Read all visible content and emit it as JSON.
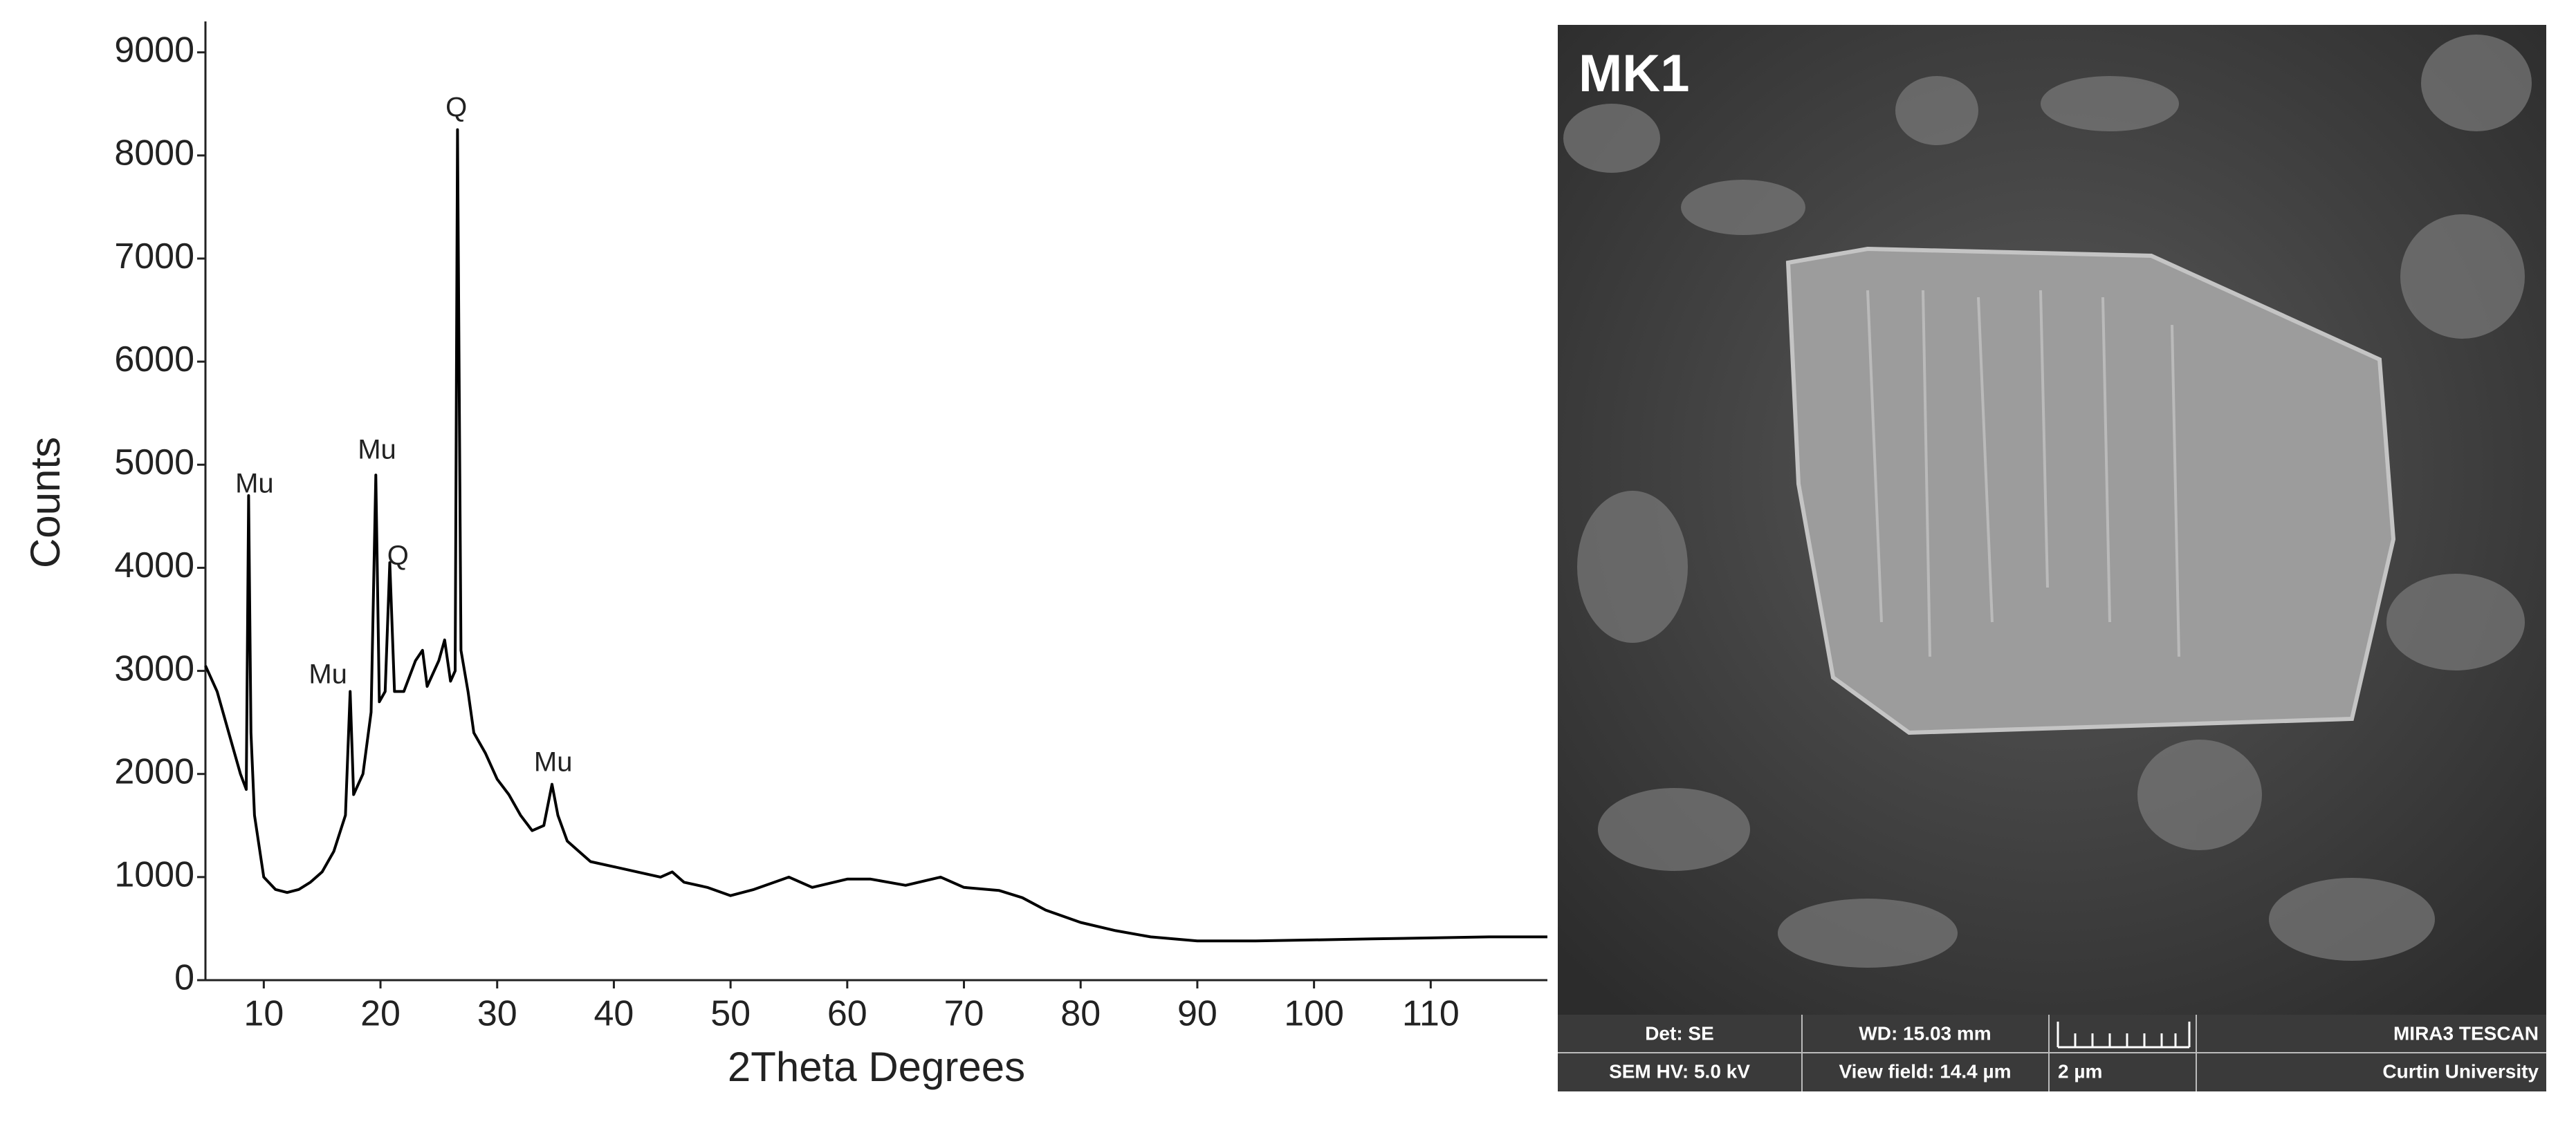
{
  "chart_data": {
    "type": "line",
    "x_label": "2Theta Degrees",
    "y_label": "Counts",
    "xlim": [
      5,
      120
    ],
    "xticks": [
      10,
      20,
      30,
      40,
      50,
      60,
      70,
      80,
      90,
      100,
      110
    ],
    "ylim": [
      0,
      9300
    ],
    "yticks": [
      0,
      1000,
      2000,
      3000,
      4000,
      5000,
      6000,
      7000,
      8000,
      9000
    ],
    "grid": false,
    "color": "#000000",
    "x": [
      5,
      6,
      7,
      8,
      8.5,
      8.7,
      8.9,
      9.2,
      10,
      11,
      12,
      13,
      14,
      15,
      16,
      17,
      17.4,
      17.7,
      18.5,
      19.2,
      19.6,
      19.9,
      20.4,
      20.8,
      21.2,
      22,
      23,
      23.6,
      24,
      25,
      25.5,
      26,
      26.4,
      26.6,
      26.9,
      27.5,
      28,
      29,
      30,
      31,
      32,
      33,
      34,
      34.7,
      35.2,
      36,
      37,
      38,
      40,
      42,
      44,
      45,
      46,
      48,
      50,
      52,
      55,
      57,
      60,
      62,
      65,
      68,
      70,
      73,
      75,
      77,
      80,
      83,
      86,
      90,
      95,
      100,
      105,
      110,
      115,
      120
    ],
    "values": [
      3050,
      2800,
      2400,
      2000,
      1850,
      4700,
      2400,
      1600,
      1000,
      880,
      850,
      880,
      950,
      1050,
      1250,
      1600,
      2800,
      1800,
      2000,
      2600,
      4900,
      2700,
      2800,
      4050,
      2800,
      2800,
      3100,
      3200,
      2850,
      3100,
      3300,
      2900,
      3000,
      8250,
      3200,
      2800,
      2400,
      2200,
      1950,
      1800,
      1600,
      1450,
      1500,
      1900,
      1600,
      1350,
      1250,
      1150,
      1100,
      1050,
      1000,
      1050,
      950,
      900,
      820,
      880,
      1000,
      900,
      980,
      980,
      920,
      1000,
      900,
      870,
      800,
      680,
      560,
      480,
      420,
      380,
      380,
      390,
      400,
      410,
      420,
      420
    ],
    "annotations": [
      {
        "text": "Mu",
        "x": 9.2,
        "y": 4800
      },
      {
        "text": "Mu",
        "x": 15.5,
        "y": 2950
      },
      {
        "text": "Mu",
        "x": 19.7,
        "y": 5130
      },
      {
        "text": "Q",
        "x": 21.5,
        "y": 4100
      },
      {
        "text": "Q",
        "x": 26.5,
        "y": 8450
      },
      {
        "text": "Mu",
        "x": 34.8,
        "y": 2100
      }
    ]
  },
  "sem_image": {
    "label": "MK1",
    "info_bar": {
      "detector": "Det: SE",
      "working_distance": "WD: 15.03 mm",
      "microscope": "MIRA3 TESCAN",
      "high_voltage": "SEM HV: 5.0 kV",
      "view_field": "View field: 14.4 µm",
      "scale_bar": "2 µm",
      "institution": "Curtin University"
    }
  }
}
